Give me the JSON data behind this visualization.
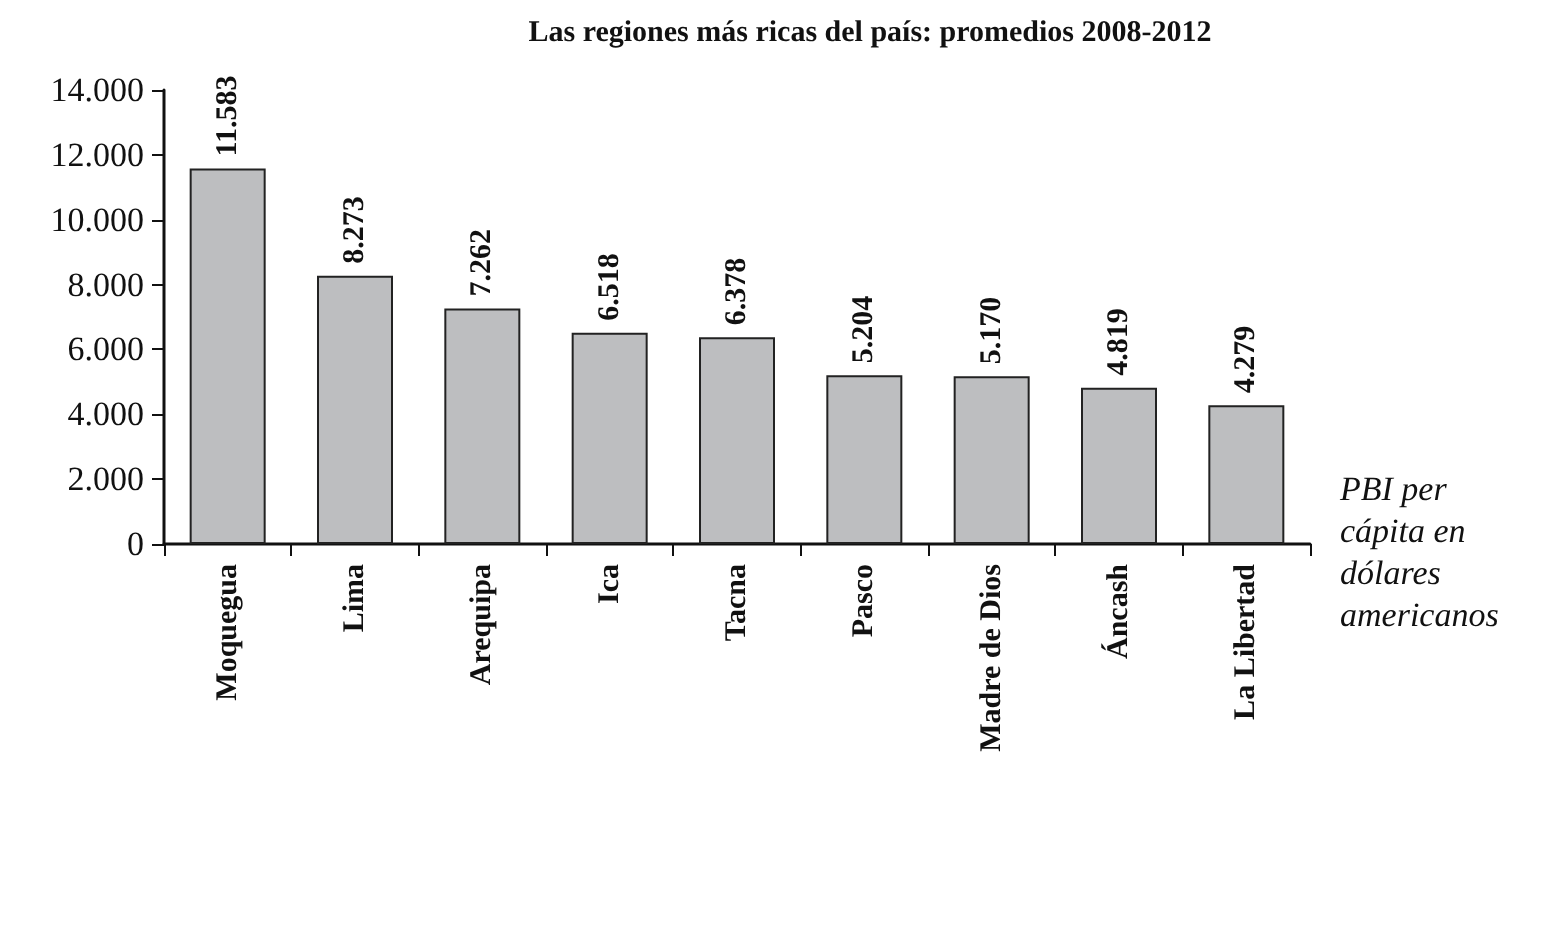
{
  "chart_data": {
    "type": "bar",
    "title": "Las regiones más ricas del país: promedios 2008-2012",
    "categories": [
      "Moquegua",
      "Lima",
      "Arequipa",
      "Ica",
      "Tacna",
      "Pasco",
      "Madre de Dios",
      "Áncash",
      "La Libertad"
    ],
    "values": [
      11583,
      8273,
      7262,
      6518,
      6378,
      5204,
      5170,
      4819,
      4279
    ],
    "value_labels": [
      "11.583",
      "8.273",
      "7.262",
      "6.518",
      "6.378",
      "5.204",
      "5.170",
      "4.819",
      "4.279"
    ],
    "color": "#bdbec0",
    "ylabel": "PBI per cápita en dólares americanos",
    "ylim": [
      0,
      14000
    ],
    "yticks": [
      0,
      {
        "value": 2000,
        "label": "2.000"
      },
      {
        "value": 4000,
        "label": "4.000"
      },
      {
        "value": 6000,
        "label": "6.000"
      },
      {
        "value": 8000,
        "label": "8.000"
      },
      {
        "value": 10000,
        "label": "10.000"
      },
      {
        "value": 12000,
        "label": "12.000"
      },
      {
        "value": 14000,
        "label": "14.000"
      }
    ],
    "grid": false
  }
}
